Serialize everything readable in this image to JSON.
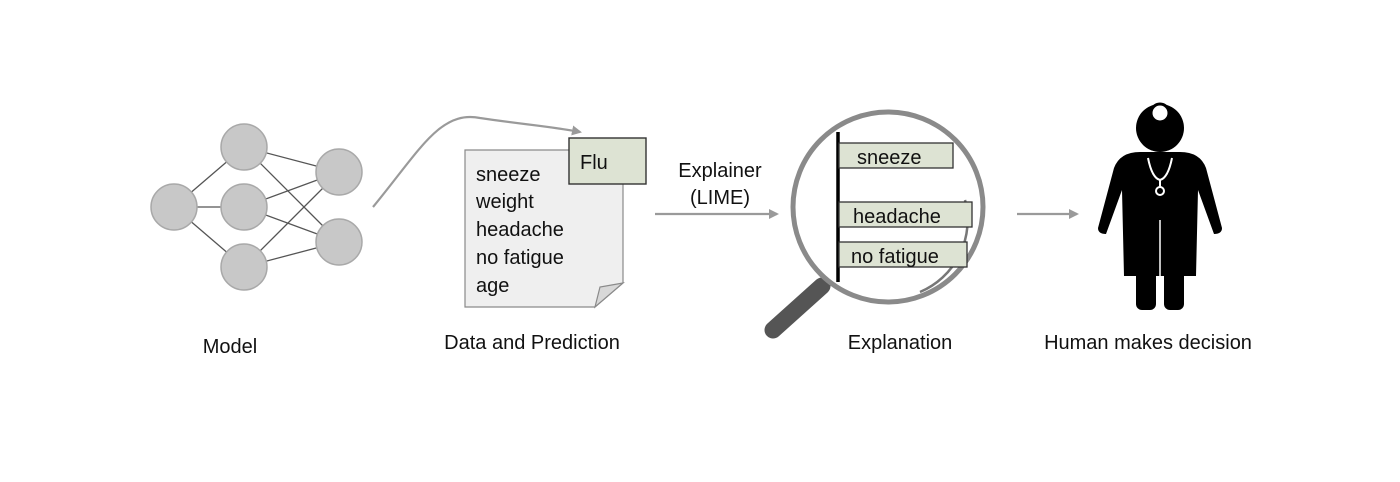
{
  "stages": {
    "model": {
      "caption": "Model"
    },
    "data": {
      "caption": "Data and Prediction",
      "prediction": "Flu",
      "features": [
        "sneeze",
        "weight",
        "headache",
        "no fatigue",
        "age"
      ]
    },
    "explainer": {
      "line1": "Explainer",
      "line2": "(LIME)"
    },
    "explanation": {
      "caption": "Explanation",
      "bars": [
        "sneeze",
        "headache",
        "no fatigue"
      ]
    },
    "human": {
      "caption": "Human makes decision"
    }
  },
  "colors": {
    "node_fill": "#c8c8c8",
    "node_stroke": "#a9a9a9",
    "arrow": "#9a9a9a",
    "doc_fill": "#efefef",
    "label_box_fill": "#dde3d3",
    "magnifier_handle": "#555555",
    "figure": "#000000"
  },
  "icons": [
    "neural-network-icon",
    "document-icon",
    "magnifier-icon",
    "doctor-icon"
  ]
}
